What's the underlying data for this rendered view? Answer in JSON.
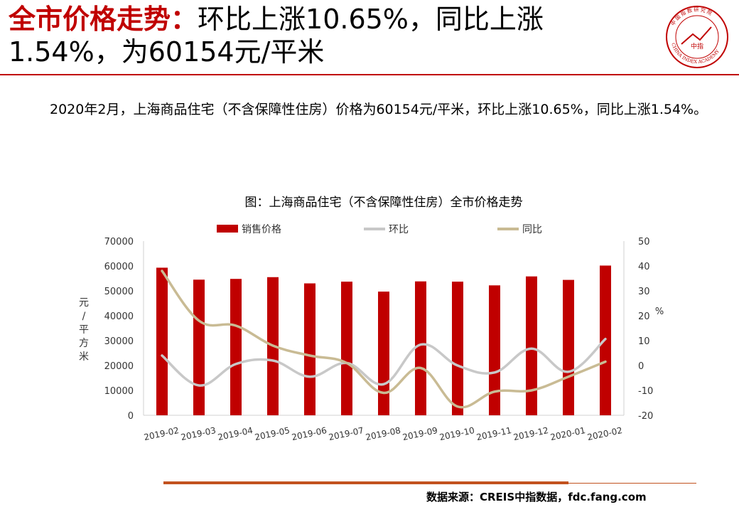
{
  "header": {
    "title_highlight": "全市价格走势：",
    "title_rest": "环比上涨10.65%，同比上涨1.54%，为60154元/平米"
  },
  "logo": {
    "name": "China Index Academy",
    "center_text": "中指",
    "ring_text": "CHINA INDEX ACADEMY",
    "top_text": "中国指数研究院"
  },
  "summary": "2020年2月，上海商品住宅（不含保障性住房）价格为60154元/平米，环比上涨10.65%，同比上涨1.54%。",
  "chart_data": {
    "type": "bar",
    "title": "图：上海商品住宅（不含保障性住房）全市价格走势",
    "categories": [
      "2019-02",
      "2019-03",
      "2019-04",
      "2019-05",
      "2019-06",
      "2019-07",
      "2019-08",
      "2019-09",
      "2019-10",
      "2019-11",
      "2019-12",
      "2020-01",
      "2020-02"
    ],
    "series": [
      {
        "name": "销售价格",
        "type": "bar",
        "axis": "left",
        "color": "#c00000",
        "values": [
          59300,
          54500,
          54800,
          55500,
          53000,
          53700,
          49700,
          53800,
          53700,
          52200,
          55800,
          54400,
          60154
        ]
      },
      {
        "name": "环比",
        "type": "line",
        "axis": "right",
        "color": "#c8c8c8",
        "values": [
          4,
          -8,
          0.6,
          2,
          -4.5,
          1,
          -7.5,
          8.4,
          0,
          -2.8,
          6.8,
          -2.5,
          10.65
        ]
      },
      {
        "name": "同比",
        "type": "line",
        "axis": "right",
        "color": "#c9bb94",
        "values": [
          38,
          18,
          16,
          8,
          4,
          1,
          -11,
          -1,
          -16.5,
          -10.5,
          -10,
          -4.5,
          1.54
        ]
      }
    ],
    "ylabel": "元/平方米",
    "ylim": [
      0,
      70000
    ],
    "yticks": [
      "0",
      "10000",
      "20000",
      "30000",
      "40000",
      "50000",
      "60000",
      "70000"
    ],
    "y2label": "%",
    "y2lim": [
      -20,
      50
    ],
    "y2ticks": [
      "-20",
      "-10",
      "0",
      "10",
      "20",
      "30",
      "40",
      "50"
    ],
    "legend_position": "top"
  },
  "footer": {
    "source": "数据来源：CREIS中指数据，fdc.fang.com"
  }
}
